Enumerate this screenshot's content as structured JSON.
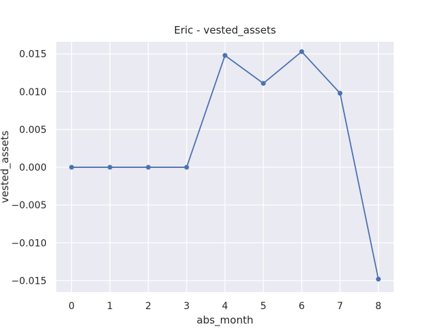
{
  "chart_data": {
    "type": "line",
    "title": "Eric - vested_assets",
    "xlabel": "abs_month",
    "ylabel": "vested_assets",
    "x": [
      0,
      1,
      2,
      3,
      4,
      5,
      6,
      7,
      8
    ],
    "series": [
      {
        "values": [
          0.0,
          0.0,
          0.0,
          0.0,
          0.0148,
          0.0111,
          0.0153,
          0.0098,
          -0.0148
        ]
      }
    ],
    "xlim": [
      -0.4,
      8.4
    ],
    "ylim": [
      -0.0165,
      0.0166
    ],
    "x_ticks": [
      {
        "value": 0,
        "label": "0"
      },
      {
        "value": 1,
        "label": "1"
      },
      {
        "value": 2,
        "label": "2"
      },
      {
        "value": 3,
        "label": "3"
      },
      {
        "value": 4,
        "label": "4"
      },
      {
        "value": 5,
        "label": "5"
      },
      {
        "value": 6,
        "label": "6"
      },
      {
        "value": 7,
        "label": "7"
      },
      {
        "value": 8,
        "label": "8"
      }
    ],
    "y_ticks": [
      {
        "value": 0.015,
        "label": "0.015"
      },
      {
        "value": 0.01,
        "label": "0.010"
      },
      {
        "value": 0.005,
        "label": "0.005"
      },
      {
        "value": 0.0,
        "label": "0.000"
      },
      {
        "value": -0.005,
        "label": "−0.005"
      },
      {
        "value": -0.01,
        "label": "−0.010"
      },
      {
        "value": -0.015,
        "label": "−0.015"
      }
    ],
    "grid": true,
    "legend": "none",
    "colors": {
      "plot_background": "#eaeaf2",
      "grid": "#ffffff",
      "line": "#4c72b0",
      "text": "#262626"
    }
  }
}
